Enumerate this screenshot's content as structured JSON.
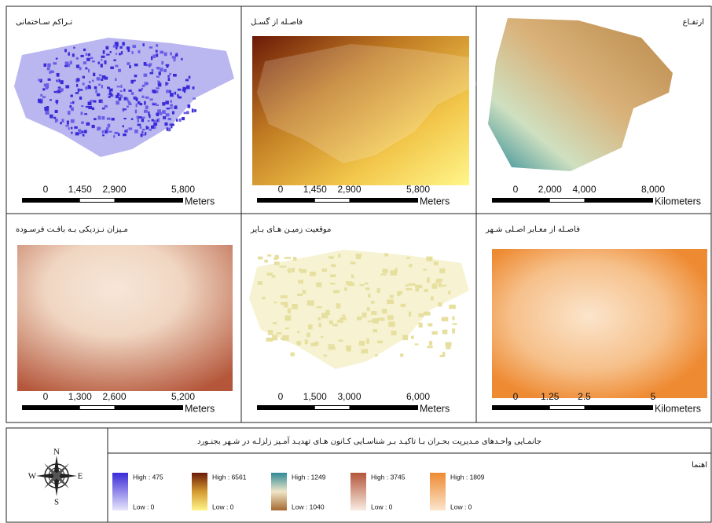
{
  "panels": [
    {
      "title": "تـراكم سـاختمانی",
      "scale": {
        "ticks": [
          "0",
          "1,450",
          "2,900",
          "5,800"
        ],
        "unit": "Meters"
      }
    },
    {
      "title": "فاصـله از گسـل",
      "scale": {
        "ticks": [
          "0",
          "1,450",
          "2,900",
          "5,800"
        ],
        "unit": "Meters"
      }
    },
    {
      "title": "ارتفـاع",
      "scale": {
        "ticks": [
          "0",
          "2,000",
          "4,000",
          "8,000"
        ],
        "unit": "Kilometers"
      }
    },
    {
      "title": "مـیزان نـزدیکی بـه بافـت فرسـوده",
      "scale": {
        "ticks": [
          "0",
          "1,300",
          "2,600",
          "5,200"
        ],
        "unit": "Meters"
      }
    },
    {
      "title": "موقعیت زمیـن هـای بـایر",
      "scale": {
        "ticks": [
          "0",
          "1,500",
          "3,000",
          "6,000"
        ],
        "unit": "Meters"
      }
    },
    {
      "title": "فاصـله از معـابر اصـلی شـهر",
      "scale": {
        "ticks": [
          "0",
          "1.25",
          "2.5",
          "5"
        ],
        "unit": "Kilometers"
      }
    }
  ],
  "legend_box": {
    "title": "جانمـایی واحـدهای مـدیریت بحـران بـا تاکیـد بـر شناسـایی کـانون هـای تهدیـد آمـیز زلزلـه در شـهر بجنـورد",
    "heading": "اهنما",
    "compass": {
      "n": "N",
      "e": "E",
      "s": "S",
      "w": "W"
    },
    "items": [
      {
        "high": "High : 475",
        "low": "Low : 0"
      },
      {
        "high": "High : 6561",
        "low": "Low : 0"
      },
      {
        "high": "High : 1249",
        "low": "Low : 1040"
      },
      {
        "high": "High : 3745",
        "low": "Low : 0"
      },
      {
        "high": "High : 1809",
        "low": "Low : 0"
      }
    ]
  }
}
